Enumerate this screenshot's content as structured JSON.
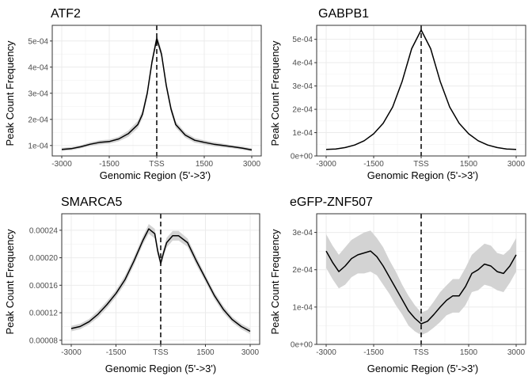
{
  "chart_data": [
    {
      "type": "line",
      "title": "ATF2",
      "xlabel": "Genomic Region (5'->3')",
      "ylabel": "Peak Count Frequency",
      "xlim": [
        -3000,
        3000
      ],
      "ylim": [
        6e-05,
        0.00056
      ],
      "x_ticks": [
        -3000,
        -1500,
        0,
        1500,
        3000
      ],
      "x_tick_labels": [
        "-3000",
        "-1500",
        "TSS",
        "1500",
        "3000"
      ],
      "y_ticks": [
        0.0001,
        0.0002,
        0.0003,
        0.0004,
        0.0005
      ],
      "y_tick_labels": [
        "1e-04",
        "2e-04",
        "3e-04",
        "4e-04",
        "5e-04"
      ],
      "grid": true,
      "tss_line": 0,
      "series": [
        {
          "x": [
            -3000,
            -2700,
            -2400,
            -2100,
            -1800,
            -1500,
            -1200,
            -900,
            -600,
            -450,
            -300,
            -150,
            0,
            150,
            300,
            450,
            600,
            900,
            1200,
            1500,
            1800,
            2100,
            2400,
            2700,
            3000
          ],
          "values": [
            8.5e-05,
            8.8e-05,
            9.5e-05,
            0.000105,
            0.000112,
            0.000115,
            0.000125,
            0.000145,
            0.00018,
            0.00022,
            0.0003,
            0.00042,
            0.00051,
            0.00045,
            0.00033,
            0.00024,
            0.00018,
            0.00014,
            0.00012,
            0.000112,
            0.000105,
            0.0001,
            9.5e-05,
            9e-05,
            8.3e-05
          ],
          "ci_halfwidth": [
            6e-06,
            6e-06,
            6e-06,
            7e-06,
            8e-06,
            8e-06,
            9e-06,
            1.2e-05,
            1.4e-05,
            1.5e-05,
            1.5e-05,
            1.5e-05,
            1.6e-05,
            1.5e-05,
            1.5e-05,
            1.4e-05,
            1.2e-05,
            1e-05,
            9e-06,
            8e-06,
            8e-06,
            7e-06,
            6e-06,
            6e-06,
            6e-06
          ]
        }
      ]
    },
    {
      "type": "line",
      "title": "GABPB1",
      "xlabel": "Genomic Region (5'->3')",
      "ylabel": "Peak Count Frequency",
      "xlim": [
        -3000,
        3000
      ],
      "ylim": [
        0,
        0.00056
      ],
      "x_ticks": [
        -3000,
        -1500,
        0,
        1500,
        3000
      ],
      "x_tick_labels": [
        "-3000",
        "-1500",
        "TSS",
        "1500",
        "3000"
      ],
      "y_ticks": [
        0,
        0.0001,
        0.0002,
        0.0003,
        0.0004,
        0.0005
      ],
      "y_tick_labels": [
        "0e+00",
        "1e-04",
        "2e-04",
        "3e-04",
        "4e-04",
        "5e-04"
      ],
      "grid": true,
      "tss_line": 0,
      "series": [
        {
          "x": [
            -3000,
            -2700,
            -2400,
            -2100,
            -1800,
            -1500,
            -1200,
            -900,
            -600,
            -300,
            0,
            300,
            600,
            900,
            1200,
            1500,
            1800,
            2100,
            2400,
            2700,
            3000
          ],
          "values": [
            2.8e-05,
            3e-05,
            3.6e-05,
            4.7e-05,
            6.5e-05,
            9.5e-05,
            0.00014,
            0.00021,
            0.00032,
            0.00046,
            0.00054,
            0.00046,
            0.00032,
            0.00021,
            0.00014,
            9.5e-05,
            6.5e-05,
            4.7e-05,
            3.6e-05,
            3e-05,
            2.8e-05
          ],
          "ci_halfwidth": [
            2e-06,
            2e-06,
            2e-06,
            2e-06,
            2e-06,
            2e-06,
            2e-06,
            2e-06,
            3e-06,
            3e-06,
            3e-06,
            3e-06,
            3e-06,
            2e-06,
            2e-06,
            2e-06,
            2e-06,
            2e-06,
            2e-06,
            2e-06,
            2e-06
          ]
        }
      ]
    },
    {
      "type": "line",
      "title": "SMARCA5",
      "xlabel": "Genomic Region (5'->3')",
      "ylabel": "Peak Count Frequency",
      "xlim": [
        -3000,
        3000
      ],
      "ylim": [
        7.4e-05,
        0.000264
      ],
      "x_ticks": [
        -3000,
        -1500,
        0,
        1500,
        3000
      ],
      "x_tick_labels": [
        "-3000",
        "-1500",
        "TSS",
        "1500",
        "3000"
      ],
      "y_ticks": [
        8e-05,
        0.00012,
        0.00016,
        0.0002,
        0.00024
      ],
      "y_tick_labels": [
        "0.00008",
        "0.00012",
        "0.00016",
        "0.00020",
        "0.00024"
      ],
      "grid": true,
      "tss_line": 0,
      "series": [
        {
          "x": [
            -3000,
            -2700,
            -2400,
            -2100,
            -1800,
            -1500,
            -1200,
            -900,
            -600,
            -400,
            -200,
            -100,
            0,
            100,
            200,
            400,
            600,
            900,
            1200,
            1500,
            1800,
            2100,
            2400,
            2700,
            3000
          ],
          "values": [
            9.7e-05,
            0.0001,
            0.000107,
            0.000118,
            0.000132,
            0.000148,
            0.000168,
            0.000195,
            0.000225,
            0.000242,
            0.000235,
            0.00021,
            0.000192,
            0.000208,
            0.000222,
            0.000232,
            0.000232,
            0.000222,
            0.000195,
            0.00017,
            0.000145,
            0.000125,
            0.00011,
            0.0001,
            9.3e-05
          ],
          "ci_halfwidth": [
            4e-06,
            4e-06,
            4e-06,
            5e-06,
            5e-06,
            5e-06,
            6e-06,
            6e-06,
            6e-06,
            7e-06,
            7e-06,
            6e-06,
            6e-06,
            6e-06,
            7e-06,
            7e-06,
            7e-06,
            6e-06,
            6e-06,
            5e-06,
            5e-06,
            5e-06,
            4e-06,
            4e-06,
            4e-06
          ]
        }
      ]
    },
    {
      "type": "line",
      "title": "eGFP-ZNF507",
      "xlabel": "Genomic Region (5'->3')",
      "ylabel": "Peak Count Frequency",
      "xlim": [
        -3000,
        3000
      ],
      "ylim": [
        0,
        0.00035
      ],
      "x_ticks": [
        -3000,
        -1500,
        0,
        1500,
        3000
      ],
      "x_tick_labels": [
        "-3000",
        "-1500",
        "TSS",
        "1500",
        "3000"
      ],
      "y_ticks": [
        0,
        0.0001,
        0.0002,
        0.0003
      ],
      "y_tick_labels": [
        "0e+00",
        "1e-04",
        "2e-04",
        "3e-04"
      ],
      "grid": true,
      "tss_line": 0,
      "series": [
        {
          "x": [
            -3000,
            -2800,
            -2600,
            -2400,
            -2200,
            -2000,
            -1800,
            -1600,
            -1400,
            -1200,
            -1000,
            -800,
            -600,
            -400,
            -200,
            0,
            200,
            400,
            600,
            800,
            1000,
            1200,
            1400,
            1600,
            1800,
            2000,
            2200,
            2400,
            2600,
            2800,
            3000
          ],
          "values": [
            0.00025,
            0.00022,
            0.000195,
            0.00021,
            0.00023,
            0.00024,
            0.000245,
            0.00025,
            0.000235,
            0.00021,
            0.00018,
            0.00015,
            0.00012,
            9e-05,
            7e-05,
            5.5e-05,
            6.2e-05,
            8e-05,
            0.0001,
            0.000118,
            0.00013,
            0.00013,
            0.000155,
            0.00019,
            0.0002,
            0.000215,
            0.00021,
            0.000195,
            0.00019,
            0.00021,
            0.00024
          ],
          "ci_halfwidth": [
            4.5e-05,
            4.5e-05,
            4.5e-05,
            5e-05,
            5e-05,
            5e-05,
            5.5e-05,
            5.5e-05,
            5e-05,
            5e-05,
            4.5e-05,
            4.5e-05,
            4e-05,
            4e-05,
            3.5e-05,
            3e-05,
            3e-05,
            3.5e-05,
            4e-05,
            4e-05,
            4.5e-05,
            4.5e-05,
            5e-05,
            5e-05,
            5.5e-05,
            5.5e-05,
            5.5e-05,
            5e-05,
            5e-05,
            4.5e-05,
            4.5e-05
          ]
        }
      ]
    }
  ]
}
